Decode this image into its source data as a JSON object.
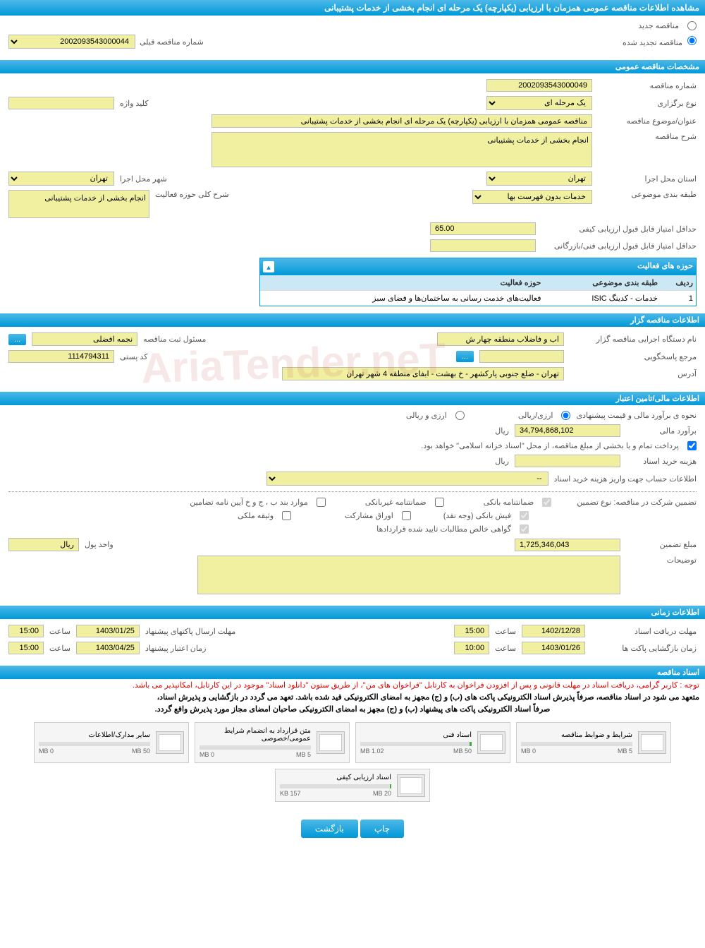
{
  "mainTitle": "مشاهده اطلاعات مناقصه عمومی همزمان با ارزیابی (یکپارچه) یک مرحله ای انجام بخشی از خدمات پشتیبانی",
  "topSection": {
    "newTender": "مناقصه جدید",
    "renewedTender": "مناقصه تجدید شده",
    "prevTenderLabel": "شماره مناقصه قبلی",
    "prevTenderNo": "2002093543000044"
  },
  "section1": {
    "header": "مشخصات مناقصه عمومی",
    "tenderNoLabel": "شماره مناقصه",
    "tenderNo": "2002093543000049",
    "typeLabel": "نوع برگزاری",
    "typeValue": "یک مرحله ای",
    "keywordLabel": "کلید واژه",
    "subjectLabel": "عنوان/موضوع مناقصه",
    "subjectValue": "مناقصه عمومی همزمان با ارزیابی (یکپارچه) یک مرحله ای انجام بخشی از خدمات پشتیبانی",
    "descLabel": "شرح مناقصه",
    "descValue": "انجام بخشی از خدمات پشتیبانی",
    "provinceLabel": "استان محل اجرا",
    "provinceValue": "تهران",
    "cityLabel": "شهر محل اجرا",
    "cityValue": "تهران",
    "categoryLabel": "طبقه بندی موضوعی",
    "categoryValue": "خدمات بدون فهرست بها",
    "activityLabel": "شرح کلی حوزه فعالیت",
    "activityValue": "انجام بخشی از خدمات پشتیبانی",
    "minQualityScoreLabel": "حداقل امتیاز قابل قبول ارزیابی کیفی",
    "minQualityScore": "65.00",
    "minTechScoreLabel": "حداقل امتیاز قابل قبول ارزیابی فنی/بازرگانی",
    "activityTable": {
      "title": "حوزه های فعالیت",
      "col1": "ردیف",
      "col2": "طبقه بندی موضوعی",
      "col3": "حوزه فعالیت",
      "row1col1": "1",
      "row1col2": "خدمات - کدینگ ISIC",
      "row1col3": "فعالیت‌های خدمت رسانی به ساختمان‌ها و فضای سبز"
    }
  },
  "section2": {
    "header": "اطلاعات مناقصه گزار",
    "orgLabel": "نام دستگاه اجرایی مناقصه گزار",
    "orgValue": "اب و فاضلاب منطقه چهار ش",
    "regLabel": "مسئول ثبت مناقصه",
    "regValue": "نجمه افضلی",
    "responseLabel": "مرجع پاسخگویی",
    "postalLabel": "کد پستی",
    "postalValue": "1114794311",
    "addressLabel": "آدرس",
    "addressValue": "تهران - ضلع جنوبی پارکشهر - خ بهشت - ابفای منطقه 4 شهر تهران",
    "moreBtn": "..."
  },
  "section3": {
    "header": "اطلاعات مالی/تامین اعتبار",
    "methodLabel": "نحوه ی برآورد مالی و قیمت پیشنهادی",
    "opt1": "ارزی/ریالی",
    "opt2": "ارزی و ریالی",
    "estimateLabel": "برآورد مالی",
    "estimateValue": "34,794,868,102",
    "currency": "ریال",
    "treasuryNote": "پرداخت تمام و یا بخشی از مبلغ مناقصه، از محل \"اسناد خزانه اسلامی\" خواهد بود.",
    "docCostLabel": "هزینه خرید اسناد",
    "docCostCurrency": "ریال",
    "accountLabel": "اطلاعات حساب جهت واریز هزینه خرید اسناد",
    "accountValue": "--",
    "guaranteeTypeLabel": "تضمین شرکت در مناقصه:   نوع تضمین",
    "g1": "ضمانتنامه بانکی",
    "g2": "ضمانتنامه غیربانکی",
    "g3": "موارد بند ب ، ج و خ آیین نامه تضامین",
    "g4": "فیش بانکی (وجه نقد)",
    "g5": "اوراق مشارکت",
    "g6": "وثیقه ملکی",
    "g7": "گواهی خالص مطالبات تایید شده قراردادها",
    "guaranteeAmtLabel": "مبلغ تضمین",
    "guaranteeAmt": "1,725,346,043",
    "unitLabel": "واحد پول",
    "unitValue": "ریال",
    "notesLabel": "توضیحات"
  },
  "section4": {
    "header": "اطلاعات زمانی",
    "docDeadlineLabel": "مهلت دریافت اسناد",
    "docDeadlineDate": "1402/12/28",
    "docDeadlineTime": "15:00",
    "bidDeadlineLabel": "مهلت ارسال پاکتهای پیشنهاد",
    "bidDeadlineDate": "1403/01/25",
    "bidDeadlineTime": "15:00",
    "openLabel": "زمان بازگشایی پاکت ها",
    "openDate": "1403/01/26",
    "openTime": "10:00",
    "validityLabel": "زمان اعتبار پیشنهاد",
    "validityDate": "1403/04/25",
    "validityTime": "15:00",
    "timeLabel": "ساعت"
  },
  "section5": {
    "header": "اسناد مناقصه",
    "notice1": "توجه : کاربر گرامی، دریافت اسناد در مهلت قانونی و پس از افزودن فراخوان به کارتابل \"فراخوان های من\"، از طریق ستون \"دانلود اسناد\" موجود در این کارتابل، امکانپذیر می باشد.",
    "notice2": "متعهد می شود در اسناد مناقصه، صرفاً پذیرش اسناد الکترونیکی پاکت های (ب) و (ج) مجهز به امضای الکترونیکی قید شده باشد. تعهد می گردد در بازگشایی و پذیرش اسناد،",
    "notice3": "صرفاً اسناد الکترونیکی پاکت های پیشنهاد (ب) و (ج) مجهز به امضای الکترونیکی صاحبان امضای مجاز مورد پذیرش واقع گردد.",
    "docs": [
      {
        "title": "شرایط و ضوابط مناقصه",
        "used": "0 MB",
        "max": "5 MB",
        "pct": 0
      },
      {
        "title": "اسناد فنی",
        "used": "1.02 MB",
        "max": "50 MB",
        "pct": 2
      },
      {
        "title": "متن قرارداد به انضمام شرایط عمومی/خصوصی",
        "used": "0 MB",
        "max": "5 MB",
        "pct": 0
      },
      {
        "title": "سایر مدارک/اطلاعات",
        "used": "0 MB",
        "max": "50 MB",
        "pct": 0
      },
      {
        "title": "اسناد ارزیابی کیفی",
        "used": "157 KB",
        "max": "20 MB",
        "pct": 1
      }
    ]
  },
  "buttons": {
    "print": "چاپ",
    "back": "بازگشت"
  },
  "watermark": "AriaTender.neT"
}
